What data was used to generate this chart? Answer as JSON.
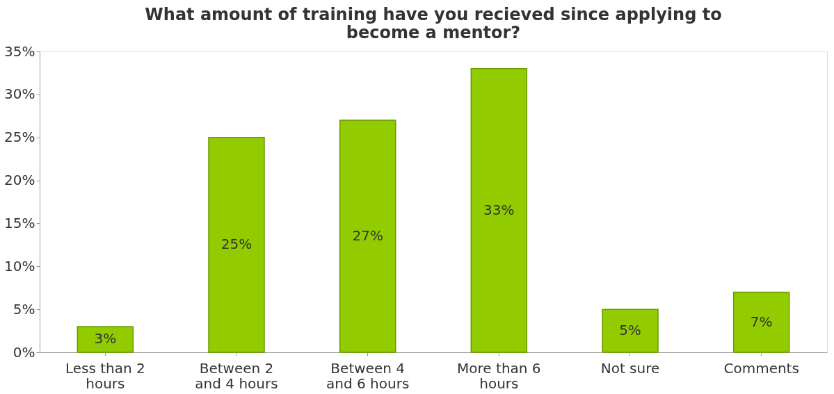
{
  "chart_data": {
    "type": "bar",
    "title": "What amount of training have you recieved since applying to become a mentor?",
    "categories": [
      "Less than 2 hours",
      "Between 2 and 4 hours",
      "Between 4 and 6 hours",
      "More than 6 hours",
      "Not sure",
      "Comments"
    ],
    "values": [
      3,
      25,
      27,
      33,
      5,
      7
    ],
    "value_labels": [
      "3%",
      "25%",
      "27%",
      "33%",
      "5%",
      "7%"
    ],
    "color": "#92cc00",
    "ylim": [
      0,
      35
    ],
    "yticks": [
      {
        "value": 0,
        "label": "0%"
      },
      {
        "value": 5,
        "label": "5%"
      },
      {
        "value": 10,
        "label": "10%"
      },
      {
        "value": 15,
        "label": "15%"
      },
      {
        "value": 20,
        "label": "20%"
      },
      {
        "value": 25,
        "label": "25%"
      },
      {
        "value": 30,
        "label": "30%"
      },
      {
        "value": 35,
        "label": "35%"
      }
    ],
    "grid": false
  }
}
